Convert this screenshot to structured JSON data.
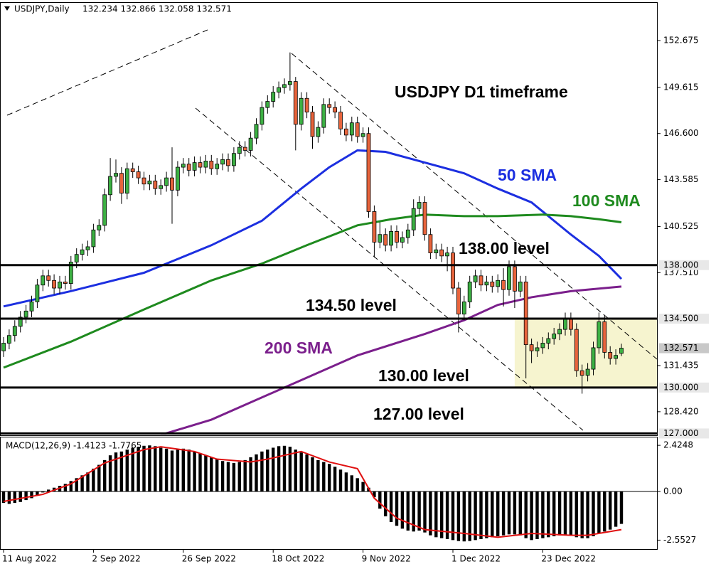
{
  "chart_data": [
    {
      "type": "candlestick",
      "title": "USDJPY,Daily",
      "ohlc_text": "132.234 132.866 132.058 132.571",
      "annotation": "USDJPY D1 timeframe",
      "up_color": "#3cb043",
      "down_color": "#e8643c",
      "categories": [
        "11 Aug 2022",
        null,
        null,
        null,
        null,
        null,
        null,
        null,
        null,
        null,
        null,
        null,
        null,
        null,
        null,
        null,
        "2 Sep 2022",
        null,
        null,
        null,
        null,
        null,
        null,
        null,
        null,
        null,
        null,
        null,
        null,
        null,
        null,
        null,
        "26 Sep 2022",
        null,
        null,
        null,
        null,
        null,
        null,
        null,
        null,
        null,
        null,
        null,
        null,
        null,
        null,
        null,
        "18 Oct 2022",
        null,
        null,
        null,
        null,
        null,
        null,
        null,
        null,
        null,
        null,
        null,
        null,
        null,
        null,
        null,
        "9 Nov 2022",
        null,
        null,
        null,
        null,
        null,
        null,
        null,
        null,
        null,
        null,
        null,
        null,
        null,
        null,
        null,
        "1 Dec 2022",
        null,
        null,
        null,
        null,
        null,
        null,
        null,
        null,
        null,
        null,
        null,
        null,
        null,
        null,
        null,
        "23 Dec 2022",
        null,
        null,
        null,
        null,
        null,
        null,
        null,
        null,
        null,
        null,
        null,
        null,
        null,
        null
      ],
      "open": [
        132.4,
        132.9,
        133.4,
        134.0,
        134.6,
        135.0,
        135.6,
        136.7,
        137.3,
        137.0,
        136.5,
        136.9,
        136.8,
        138.2,
        138.7,
        139.0,
        139.2,
        140.3,
        140.6,
        142.6,
        143.8,
        144.0,
        142.7,
        144.3,
        144.1,
        143.7,
        143.3,
        143.5,
        143.0,
        143.2,
        143.7,
        142.9,
        144.4,
        144.6,
        144.2,
        144.7,
        144.4,
        144.8,
        144.3,
        144.6,
        144.9,
        144.5,
        145.3,
        145.7,
        145.5,
        146.3,
        147.2,
        148.3,
        148.7,
        149.3,
        149.6,
        149.8,
        150.0,
        147.2,
        148.9,
        148.0,
        146.4,
        147.0,
        148.5,
        148.3,
        148.0,
        146.9,
        146.5,
        147.3,
        146.4,
        146.6,
        141.5,
        139.5,
        140.0,
        139.3,
        140.2,
        139.5,
        139.8,
        140.3,
        141.7,
        142.1,
        140.0,
        138.8,
        139.0,
        138.6,
        138.8,
        136.5,
        134.8,
        135.6,
        136.9,
        137.3,
        136.7,
        136.9,
        136.6,
        137.0,
        136.4,
        137.9,
        136.3,
        136.9,
        132.8,
        132.4,
        132.6,
        132.9,
        133.2,
        133.5,
        133.8,
        134.5,
        133.8,
        131.1,
        130.8,
        131.2,
        132.6,
        134.3,
        132.3,
        131.9,
        132.234
      ],
      "high": [
        133.3,
        133.8,
        134.4,
        135.0,
        135.4,
        136.0,
        137.1,
        137.7,
        137.7,
        137.4,
        137.3,
        137.3,
        138.6,
        139.1,
        139.4,
        139.6,
        140.7,
        141.0,
        143.0,
        145.0,
        144.9,
        144.4,
        144.7,
        144.7,
        144.5,
        144.1,
        143.9,
        143.9,
        143.6,
        144.1,
        145.7,
        144.8,
        145.0,
        145.0,
        145.1,
        145.1,
        145.2,
        145.2,
        145.0,
        145.3,
        145.3,
        145.7,
        146.1,
        146.1,
        146.7,
        147.6,
        148.7,
        149.1,
        149.7,
        150.0,
        150.2,
        151.9,
        150.3,
        149.3,
        149.3,
        148.4,
        147.4,
        148.9,
        148.9,
        148.7,
        148.4,
        147.3,
        147.7,
        147.7,
        147.0,
        147.0,
        141.9,
        140.8,
        140.4,
        140.6,
        140.6,
        140.2,
        140.7,
        142.3,
        142.5,
        142.5,
        140.4,
        139.4,
        139.4,
        139.2,
        139.2,
        136.9,
        136.0,
        137.3,
        137.7,
        137.7,
        137.3,
        137.3,
        137.4,
        137.8,
        138.3,
        138.3,
        137.3,
        137.3,
        133.2,
        133.0,
        133.3,
        133.6,
        133.9,
        134.2,
        134.9,
        134.9,
        134.2,
        131.5,
        131.6,
        133.0,
        134.9,
        134.7,
        132.7,
        132.5,
        132.866
      ],
      "low": [
        132.0,
        132.5,
        133.0,
        133.6,
        134.2,
        134.6,
        135.2,
        136.3,
        136.6,
        136.1,
        136.1,
        136.4,
        136.4,
        137.8,
        138.3,
        138.6,
        138.8,
        139.9,
        140.2,
        142.2,
        143.4,
        142.0,
        142.3,
        143.7,
        143.3,
        142.9,
        142.9,
        142.6,
        142.6,
        142.8,
        140.7,
        142.5,
        144.0,
        143.8,
        143.8,
        144.0,
        144.0,
        143.9,
        143.9,
        144.2,
        144.1,
        144.1,
        144.9,
        145.1,
        145.1,
        145.9,
        146.8,
        147.9,
        148.3,
        148.9,
        149.2,
        149.4,
        145.5,
        146.8,
        147.6,
        145.6,
        146.0,
        146.6,
        147.9,
        147.6,
        146.5,
        146.1,
        146.1,
        146.0,
        146.0,
        141.1,
        138.5,
        139.1,
        138.9,
        138.9,
        139.1,
        139.1,
        139.4,
        139.9,
        141.3,
        139.6,
        138.4,
        138.4,
        138.2,
        137.6,
        136.1,
        133.6,
        134.4,
        135.2,
        136.5,
        136.3,
        136.3,
        136.2,
        136.2,
        135.3,
        136.0,
        135.2,
        135.9,
        130.6,
        131.6,
        132.0,
        132.2,
        132.5,
        132.8,
        133.1,
        133.4,
        133.4,
        130.7,
        129.6,
        130.4,
        130.8,
        132.2,
        131.9,
        131.5,
        131.5,
        132.058
      ],
      "close": [
        132.9,
        133.4,
        134.0,
        134.6,
        135.0,
        135.6,
        136.7,
        137.3,
        137.0,
        136.5,
        136.9,
        136.8,
        138.2,
        138.7,
        139.0,
        139.2,
        140.3,
        140.6,
        142.6,
        143.8,
        144.0,
        142.7,
        144.3,
        144.1,
        143.7,
        143.3,
        143.5,
        143.0,
        143.2,
        143.7,
        142.9,
        144.4,
        144.6,
        144.2,
        144.7,
        144.4,
        144.8,
        144.3,
        144.6,
        144.9,
        144.5,
        145.3,
        145.7,
        145.5,
        146.3,
        147.2,
        148.3,
        148.7,
        149.3,
        149.6,
        149.8,
        150.0,
        147.2,
        148.9,
        148.0,
        146.4,
        147.0,
        148.5,
        148.3,
        148.0,
        146.9,
        146.5,
        147.3,
        146.4,
        146.6,
        141.5,
        139.5,
        140.0,
        139.3,
        140.2,
        139.5,
        139.8,
        140.3,
        141.7,
        142.1,
        140.0,
        138.8,
        139.0,
        138.6,
        138.8,
        136.5,
        134.8,
        135.6,
        136.9,
        137.3,
        136.7,
        136.9,
        136.6,
        137.0,
        136.4,
        137.9,
        136.3,
        136.9,
        132.8,
        132.4,
        132.6,
        132.9,
        133.2,
        133.5,
        133.8,
        134.5,
        133.8,
        131.1,
        130.8,
        131.2,
        132.6,
        134.3,
        132.3,
        131.9,
        132.1,
        132.571
      ],
      "lines": [
        {
          "name": "50 SMA",
          "color": "#1c2fe0",
          "x": [
            0,
            12,
            25,
            37,
            46,
            53,
            58,
            63,
            68,
            75,
            82,
            88,
            94,
            101,
            106,
            110
          ],
          "values": [
            135.3,
            136.3,
            137.5,
            139.3,
            140.9,
            143.0,
            144.4,
            145.5,
            145.4,
            144.7,
            144.0,
            143.0,
            142.1,
            140.0,
            138.6,
            137.1
          ]
        },
        {
          "name": "100 SMA",
          "color": "#1e8a1e",
          "x": [
            0,
            12,
            25,
            37,
            46,
            54,
            63,
            69,
            75,
            82,
            88,
            96,
            101,
            106,
            110
          ],
          "values": [
            131.3,
            133.0,
            135.1,
            137.0,
            138.1,
            139.3,
            140.6,
            141.0,
            141.3,
            141.2,
            141.2,
            141.3,
            141.2,
            141.0,
            140.8
          ]
        },
        {
          "name": "200 SMA",
          "color": "#7b1f8c",
          "x": [
            28,
            37,
            50,
            63,
            75,
            82,
            88,
            94,
            101,
            110
          ],
          "values": [
            126.9,
            127.9,
            130.0,
            132.1,
            133.5,
            134.4,
            135.4,
            135.9,
            136.3,
            136.6
          ]
        }
      ],
      "levels": [
        {
          "value": 138,
          "label": "138.000",
          "text": "138.00 level"
        },
        {
          "value": 134.5,
          "label": "134.500",
          "text": "134.50 level"
        },
        {
          "value": 130,
          "label": "130.000",
          "text": "130.00 level"
        },
        {
          "value": 127,
          "label": "127.000",
          "text": "127.00 level"
        }
      ],
      "current_price": 132.571,
      "ylim": [
        126.88,
        155.14
      ],
      "yticks": [
        152.675,
        149.615,
        {
          "value": 146.6,
          "label": "146.600"
        },
        143.585,
        140.525,
        {
          "value": 137.51,
          "label": "137.510"
        },
        131.435,
        {
          "value": 128.42,
          "label": "128.420"
        }
      ]
    },
    {
      "type": "macd",
      "title": "MACD(12,26,9) -1.4123 -1.7765",
      "color": "#000000",
      "values": [
        -0.6,
        -0.65,
        -0.6,
        -0.55,
        -0.45,
        -0.35,
        -0.2,
        -0.05,
        0.1,
        0.2,
        0.3,
        0.4,
        0.55,
        0.7,
        0.85,
        1.0,
        1.2,
        1.4,
        1.65,
        1.9,
        2.05,
        2.1,
        2.2,
        2.3,
        2.35,
        2.4,
        2.42,
        2.38,
        2.3,
        2.25,
        2.15,
        2.2,
        2.25,
        2.2,
        2.1,
        2.0,
        1.9,
        1.8,
        1.7,
        1.6,
        1.55,
        1.5,
        1.55,
        1.65,
        1.8,
        1.95,
        2.1,
        2.2,
        2.3,
        2.38,
        2.4,
        2.35,
        2.2,
        2.05,
        1.95,
        1.8,
        1.65,
        1.55,
        1.45,
        1.3,
        1.15,
        1.0,
        0.85,
        0.7,
        0.5,
        0.2,
        -0.3,
        -0.9,
        -1.3,
        -1.6,
        -1.8,
        -1.95,
        -2.05,
        -2.1,
        -2.05,
        -2.15,
        -2.3,
        -2.4,
        -2.45,
        -2.5,
        -2.55,
        -2.6,
        -2.62,
        -2.6,
        -2.55,
        -2.5,
        -2.45,
        -2.4,
        -2.35,
        -2.3,
        -2.25,
        -2.25,
        -2.3,
        -2.45,
        -2.55,
        -2.5,
        -2.45,
        -2.4,
        -2.35,
        -2.3,
        -2.3,
        -2.3,
        -2.4,
        -2.45,
        -2.45,
        -2.35,
        -2.2,
        -2.1,
        -2.0,
        -1.85,
        -1.7
      ],
      "signal": {
        "color": "#e01010",
        "x": [
          0,
          7,
          12,
          18,
          25,
          28,
          34,
          38,
          44,
          47,
          53,
          58,
          63,
          66,
          70,
          75,
          82,
          88,
          94,
          101,
          104,
          110
        ],
        "values": [
          -0.52,
          -0.15,
          0.4,
          1.5,
          2.2,
          2.35,
          2.1,
          1.7,
          1.55,
          1.7,
          2.1,
          1.55,
          1.2,
          -0.35,
          -1.4,
          -2.0,
          -2.2,
          -2.4,
          -2.2,
          -2.3,
          -2.3,
          -2.0
        ]
      },
      "ylim": [
        -3.06,
        2.84
      ],
      "yticks": [
        2.4248,
        {
          "value": 0,
          "label": "0.00"
        },
        -2.5527
      ]
    }
  ]
}
